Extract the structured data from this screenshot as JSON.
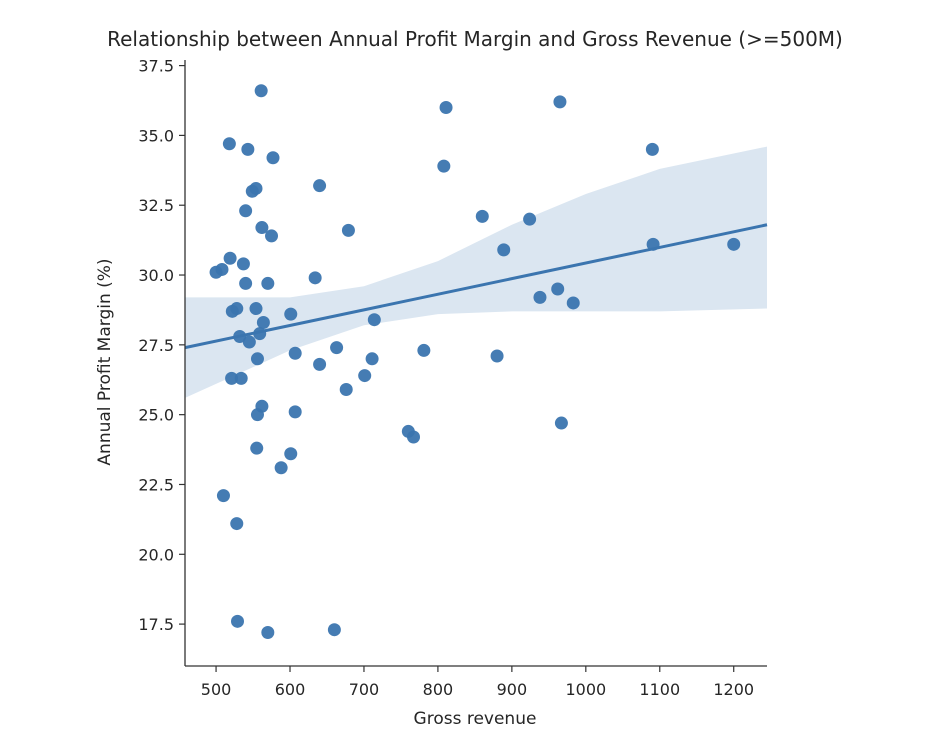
{
  "chart_data": {
    "type": "scatter",
    "title": "Relationship between Annual Profit Margin and Gross Revenue (>=500M)",
    "xlabel": "Gross revenue",
    "ylabel": "Annual Profit Margin (%)",
    "xlim": [
      458,
      1245
    ],
    "ylim": [
      16.0,
      37.7
    ],
    "x_ticks": [
      500,
      600,
      700,
      800,
      900,
      1000,
      1100,
      1200
    ],
    "x_tick_labels": [
      "500",
      "600",
      "700",
      "800",
      "900",
      "1000",
      "1100",
      "1200"
    ],
    "y_ticks": [
      17.5,
      20.0,
      22.5,
      25.0,
      27.5,
      30.0,
      32.5,
      35.0,
      37.5
    ],
    "y_tick_labels": [
      "17.5",
      "20.0",
      "22.5",
      "25.0",
      "27.5",
      "30.0",
      "32.5",
      "35.0",
      "37.5"
    ],
    "grid": false,
    "point_color": "#3b75af",
    "band_color": "#dbe6f1",
    "points": [
      {
        "x": 561,
        "y": 36.6
      },
      {
        "x": 518,
        "y": 34.7
      },
      {
        "x": 543,
        "y": 34.5
      },
      {
        "x": 577,
        "y": 34.2
      },
      {
        "x": 549,
        "y": 33.0
      },
      {
        "x": 554,
        "y": 33.1
      },
      {
        "x": 640,
        "y": 33.2
      },
      {
        "x": 540,
        "y": 32.3
      },
      {
        "x": 562,
        "y": 31.7
      },
      {
        "x": 575,
        "y": 31.4
      },
      {
        "x": 679,
        "y": 31.6
      },
      {
        "x": 519,
        "y": 30.6
      },
      {
        "x": 537,
        "y": 30.4
      },
      {
        "x": 508,
        "y": 30.2
      },
      {
        "x": 500,
        "y": 30.1
      },
      {
        "x": 540,
        "y": 29.7
      },
      {
        "x": 570,
        "y": 29.7
      },
      {
        "x": 634,
        "y": 29.9
      },
      {
        "x": 528,
        "y": 28.8
      },
      {
        "x": 522,
        "y": 28.7
      },
      {
        "x": 554,
        "y": 28.8
      },
      {
        "x": 564,
        "y": 28.3
      },
      {
        "x": 601,
        "y": 28.6
      },
      {
        "x": 559,
        "y": 27.9
      },
      {
        "x": 532,
        "y": 27.8
      },
      {
        "x": 545,
        "y": 27.6
      },
      {
        "x": 556,
        "y": 27.0
      },
      {
        "x": 607,
        "y": 27.2
      },
      {
        "x": 663,
        "y": 27.4
      },
      {
        "x": 714,
        "y": 28.4
      },
      {
        "x": 640,
        "y": 26.8
      },
      {
        "x": 711,
        "y": 27.0
      },
      {
        "x": 701,
        "y": 26.4
      },
      {
        "x": 676,
        "y": 25.9
      },
      {
        "x": 521,
        "y": 26.3
      },
      {
        "x": 534,
        "y": 26.3
      },
      {
        "x": 562,
        "y": 25.3
      },
      {
        "x": 556,
        "y": 25.0
      },
      {
        "x": 607,
        "y": 25.1
      },
      {
        "x": 555,
        "y": 23.8
      },
      {
        "x": 601,
        "y": 23.6
      },
      {
        "x": 588,
        "y": 23.1
      },
      {
        "x": 510,
        "y": 22.1
      },
      {
        "x": 528,
        "y": 21.1
      },
      {
        "x": 529,
        "y": 17.6
      },
      {
        "x": 570,
        "y": 17.2
      },
      {
        "x": 660,
        "y": 17.3
      },
      {
        "x": 760,
        "y": 24.4
      },
      {
        "x": 767,
        "y": 24.2
      },
      {
        "x": 781,
        "y": 27.3
      },
      {
        "x": 811,
        "y": 36.0
      },
      {
        "x": 808,
        "y": 33.9
      },
      {
        "x": 860,
        "y": 32.1
      },
      {
        "x": 880,
        "y": 27.1
      },
      {
        "x": 889,
        "y": 30.9
      },
      {
        "x": 924,
        "y": 32.0
      },
      {
        "x": 938,
        "y": 29.2
      },
      {
        "x": 962,
        "y": 29.5
      },
      {
        "x": 983,
        "y": 29.0
      },
      {
        "x": 965,
        "y": 36.2
      },
      {
        "x": 967,
        "y": 24.7
      },
      {
        "x": 1090,
        "y": 34.5
      },
      {
        "x": 1091,
        "y": 31.1
      },
      {
        "x": 1200,
        "y": 31.1
      }
    ],
    "regression": {
      "line": [
        {
          "x": 458,
          "y": 27.4
        },
        {
          "x": 1245,
          "y": 31.8
        }
      ],
      "ci_upper": [
        {
          "x": 458,
          "y": 29.2
        },
        {
          "x": 600,
          "y": 29.2
        },
        {
          "x": 700,
          "y": 29.6
        },
        {
          "x": 800,
          "y": 30.5
        },
        {
          "x": 900,
          "y": 31.8
        },
        {
          "x": 1000,
          "y": 32.9
        },
        {
          "x": 1100,
          "y": 33.8
        },
        {
          "x": 1245,
          "y": 34.6
        }
      ],
      "ci_lower": [
        {
          "x": 458,
          "y": 25.6
        },
        {
          "x": 600,
          "y": 27.3
        },
        {
          "x": 700,
          "y": 28.2
        },
        {
          "x": 800,
          "y": 28.6
        },
        {
          "x": 900,
          "y": 28.7
        },
        {
          "x": 1000,
          "y": 28.7
        },
        {
          "x": 1100,
          "y": 28.7
        },
        {
          "x": 1245,
          "y": 28.8
        }
      ]
    }
  }
}
